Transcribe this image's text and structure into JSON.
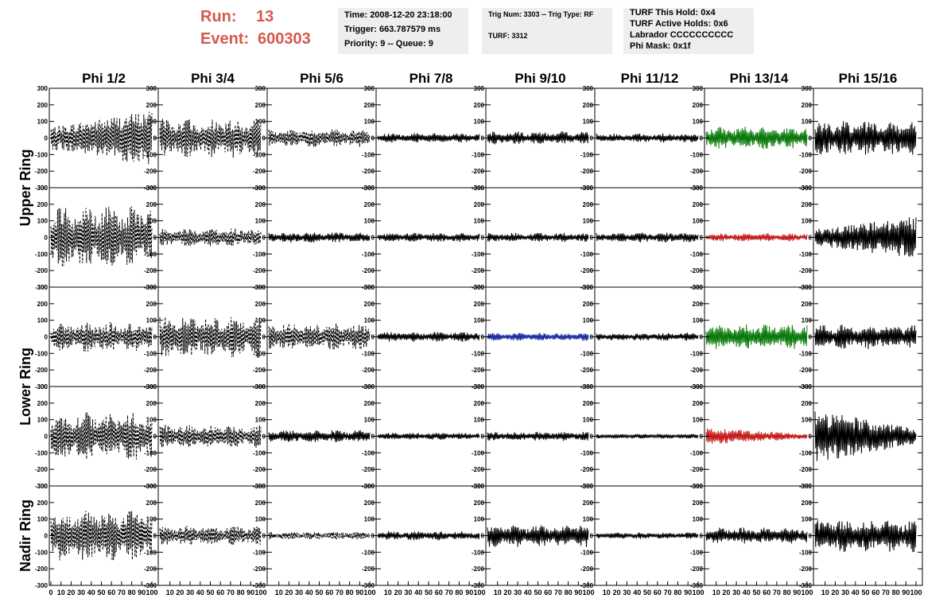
{
  "run_label": "Run:",
  "run_value": "13",
  "event_label": "Event:",
  "event_value": "600303",
  "info_box_1": {
    "time": "Time: 2008-12-20 23:18:00",
    "trigger": "Trigger: 663.787579 ms",
    "priority": "Priority: 9 -- Queue: 9"
  },
  "info_box_2": {
    "trig": "Trig Num: 3303 -- Trig Type: RF",
    "turf": "TURF: 3312"
  },
  "info_box_3": {
    "this_hold": "TURF This Hold: 0x4",
    "active_holds": "TURF Active Holds: 0x6",
    "labrador": "Labrador CCCCCCCCCC",
    "phi_mask": "Phi Mask: 0x1f"
  },
  "chart_data": {
    "type": "line",
    "column_labels": [
      "Phi 1/2",
      "Phi 3/4",
      "Phi 5/6",
      "Phi 7/8",
      "Phi 9/10",
      "Phi 11/12",
      "Phi 13/14",
      "Phi 15/16"
    ],
    "ring_labels": [
      "Upper Ring",
      "Lower Ring",
      "Nadir Ring"
    ],
    "ylim": [
      -300,
      300
    ],
    "yticks": [
      -300,
      -200,
      -100,
      0,
      100,
      200,
      300
    ],
    "xlim": [
      0,
      100
    ],
    "xtick_labels_first": [
      "0",
      "10",
      "20",
      "30",
      "40",
      "50",
      "60",
      "70",
      "80",
      "90",
      "100"
    ],
    "xtick_labels_other": [
      "10",
      "20",
      "30",
      "40",
      "50",
      "60",
      "70",
      "80",
      "90",
      "100"
    ],
    "colors": {
      "black": "#000000",
      "green": "#0a7a0a",
      "red": "#c41a1a",
      "blue": "#1a2aa0"
    },
    "panels": [
      [
        {
          "amp": 170,
          "style": "dashed",
          "color": "black"
        },
        {
          "amp": 120,
          "style": "dashed",
          "color": "black"
        },
        {
          "amp": 55,
          "style": "dashed",
          "color": "black"
        },
        {
          "amp": 30,
          "style": "solid",
          "color": "black"
        },
        {
          "amp": 40,
          "style": "solid",
          "color": "black"
        },
        {
          "amp": 28,
          "style": "solid",
          "color": "black"
        },
        {
          "amp": 70,
          "style": "solid",
          "color": "green"
        },
        {
          "amp": 105,
          "style": "solid",
          "color": "black"
        }
      ],
      [
        {
          "amp": 190,
          "style": "dashed",
          "color": "black"
        },
        {
          "amp": 55,
          "style": "dashed",
          "color": "black"
        },
        {
          "amp": 32,
          "style": "solid",
          "color": "black"
        },
        {
          "amp": 28,
          "style": "solid",
          "color": "black"
        },
        {
          "amp": 28,
          "style": "solid",
          "color": "black"
        },
        {
          "amp": 30,
          "style": "solid",
          "color": "black"
        },
        {
          "amp": 25,
          "style": "solid",
          "color": "red"
        },
        {
          "amp": 130,
          "style": "solid",
          "color": "black"
        }
      ],
      [
        {
          "amp": 90,
          "style": "dashed",
          "color": "black"
        },
        {
          "amp": 130,
          "style": "dashed",
          "color": "black"
        },
        {
          "amp": 85,
          "style": "dashed",
          "color": "black"
        },
        {
          "amp": 30,
          "style": "solid",
          "color": "black"
        },
        {
          "amp": 25,
          "style": "solid",
          "color": "blue"
        },
        {
          "amp": 25,
          "style": "solid",
          "color": "black"
        },
        {
          "amp": 80,
          "style": "solid",
          "color": "green"
        },
        {
          "amp": 75,
          "style": "solid",
          "color": "black"
        }
      ],
      [
        {
          "amp": 150,
          "style": "dashed",
          "color": "black"
        },
        {
          "amp": 70,
          "style": "dashed",
          "color": "black"
        },
        {
          "amp": 38,
          "style": "solid",
          "color": "black"
        },
        {
          "amp": 22,
          "style": "solid",
          "color": "black"
        },
        {
          "amp": 28,
          "style": "solid",
          "color": "black"
        },
        {
          "amp": 15,
          "style": "solid",
          "color": "black"
        },
        {
          "amp": 50,
          "style": "solid",
          "color": "red"
        },
        {
          "amp": 160,
          "style": "solid",
          "color": "black"
        }
      ],
      [
        {
          "amp": 160,
          "style": "dashed",
          "color": "black"
        },
        {
          "amp": 60,
          "style": "dashed",
          "color": "black"
        },
        {
          "amp": 25,
          "style": "dashed",
          "color": "black"
        },
        {
          "amp": 28,
          "style": "solid",
          "color": "black"
        },
        {
          "amp": 70,
          "style": "solid",
          "color": "black"
        },
        {
          "amp": 20,
          "style": "solid",
          "color": "black"
        },
        {
          "amp": 50,
          "style": "solid",
          "color": "black"
        },
        {
          "amp": 100,
          "style": "solid",
          "color": "black"
        }
      ]
    ]
  }
}
